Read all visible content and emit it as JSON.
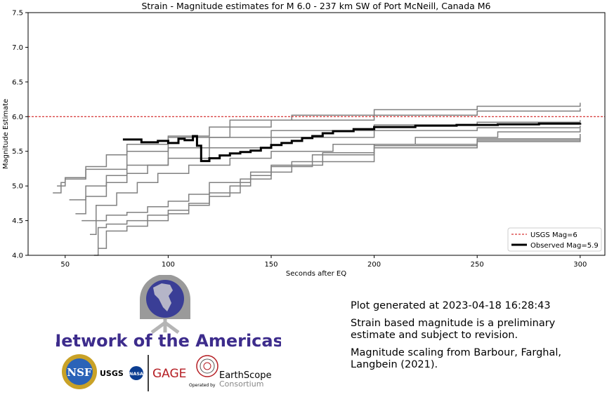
{
  "chart_data": {
    "type": "line",
    "title": "Strain - Magnitude estimates for M 6.0 - 237 km SW of Port McNeill, Canada M6",
    "xlabel": "Seconds after EQ",
    "ylabel": "Magnitude Estimate",
    "xlim": [
      32,
      312
    ],
    "ylim": [
      4.0,
      7.5
    ],
    "xticks": [
      50,
      100,
      150,
      200,
      250,
      300
    ],
    "yticks": [
      4.0,
      4.5,
      5.0,
      5.5,
      6.0,
      6.5,
      7.0,
      7.5
    ],
    "reference_line": {
      "name": "USGS Mag=6",
      "value": 6.0,
      "color": "#cc0000"
    },
    "observed_series": {
      "name": "Observed Mag=5.9",
      "color": "#000000",
      "x": [
        78,
        85,
        87,
        95,
        100,
        105,
        108,
        112,
        114,
        116,
        120,
        125,
        130,
        135,
        140,
        145,
        150,
        155,
        160,
        165,
        170,
        175,
        180,
        190,
        200,
        220,
        240,
        260,
        280,
        300
      ],
      "y": [
        5.67,
        5.67,
        5.63,
        5.65,
        5.62,
        5.68,
        5.66,
        5.72,
        5.58,
        5.36,
        5.4,
        5.44,
        5.47,
        5.49,
        5.51,
        5.55,
        5.59,
        5.62,
        5.65,
        5.69,
        5.72,
        5.76,
        5.79,
        5.82,
        5.85,
        5.87,
        5.88,
        5.89,
        5.9,
        5.91
      ]
    },
    "station_series": [
      {
        "x": [
          44,
          48,
          50,
          60,
          80,
          100,
          130,
          160,
          200,
          250,
          300
        ],
        "y": [
          4.9,
          5.05,
          5.12,
          5.24,
          5.5,
          5.7,
          5.95,
          6.02,
          6.1,
          6.15,
          6.2
        ]
      },
      {
        "x": [
          46,
          50,
          60,
          70,
          80,
          100,
          120,
          150,
          200,
          250,
          300
        ],
        "y": [
          5.0,
          5.1,
          5.28,
          5.45,
          5.6,
          5.72,
          5.85,
          5.95,
          6.02,
          6.08,
          6.12
        ]
      },
      {
        "x": [
          52,
          60,
          70,
          80,
          100,
          120,
          150,
          200,
          250,
          300
        ],
        "y": [
          4.8,
          5.0,
          5.15,
          5.3,
          5.55,
          5.7,
          5.8,
          5.88,
          5.92,
          5.95
        ]
      },
      {
        "x": [
          55,
          60,
          70,
          80,
          90,
          100,
          120,
          150,
          200,
          250,
          300
        ],
        "y": [
          4.6,
          4.85,
          5.05,
          5.18,
          5.3,
          5.4,
          5.55,
          5.7,
          5.8,
          5.84,
          5.87
        ]
      },
      {
        "x": [
          58,
          65,
          75,
          85,
          95,
          110,
          130,
          150,
          180,
          220,
          260,
          300
        ],
        "y": [
          4.5,
          4.72,
          4.9,
          5.05,
          5.18,
          5.3,
          5.4,
          5.5,
          5.6,
          5.7,
          5.78,
          5.83
        ]
      },
      {
        "x": [
          62,
          65,
          70,
          80,
          90,
          100,
          110,
          120,
          140,
          160,
          200,
          250,
          300
        ],
        "y": [
          4.3,
          4.5,
          4.58,
          4.62,
          4.7,
          4.78,
          4.88,
          5.05,
          5.2,
          5.35,
          5.55,
          5.68,
          5.75
        ]
      },
      {
        "x": [
          64,
          66,
          70,
          80,
          90,
          100,
          110,
          120,
          135,
          150,
          175,
          200,
          250,
          300
        ],
        "y": [
          4.0,
          4.4,
          4.45,
          4.5,
          4.58,
          4.65,
          4.75,
          4.9,
          5.1,
          5.3,
          5.48,
          5.6,
          5.66,
          5.7
        ]
      },
      {
        "x": [
          66,
          70,
          80,
          90,
          100,
          110,
          120,
          130,
          140,
          150,
          170,
          200,
          250,
          300
        ],
        "y": [
          4.1,
          4.35,
          4.42,
          4.5,
          4.6,
          4.72,
          4.85,
          5.0,
          5.15,
          5.28,
          5.45,
          5.58,
          5.64,
          5.68
        ]
      }
    ]
  },
  "info": {
    "generated": "Plot generated at 2023-04-18 16:28:43",
    "disclaimer": "Strain based magnitude is a preliminary estimate and subject to revision.",
    "reference": "Magnitude scaling from Barbour, Farghal, Langbein (2021)."
  },
  "logo": {
    "network_name": "Network of the Americas",
    "nsf": "NSF",
    "usgs": "USGS",
    "nasa": "NASA",
    "gage": "GAGE",
    "earthscope": "EarthScope",
    "consortium": "Consortium",
    "operated_by": "Operated by"
  }
}
